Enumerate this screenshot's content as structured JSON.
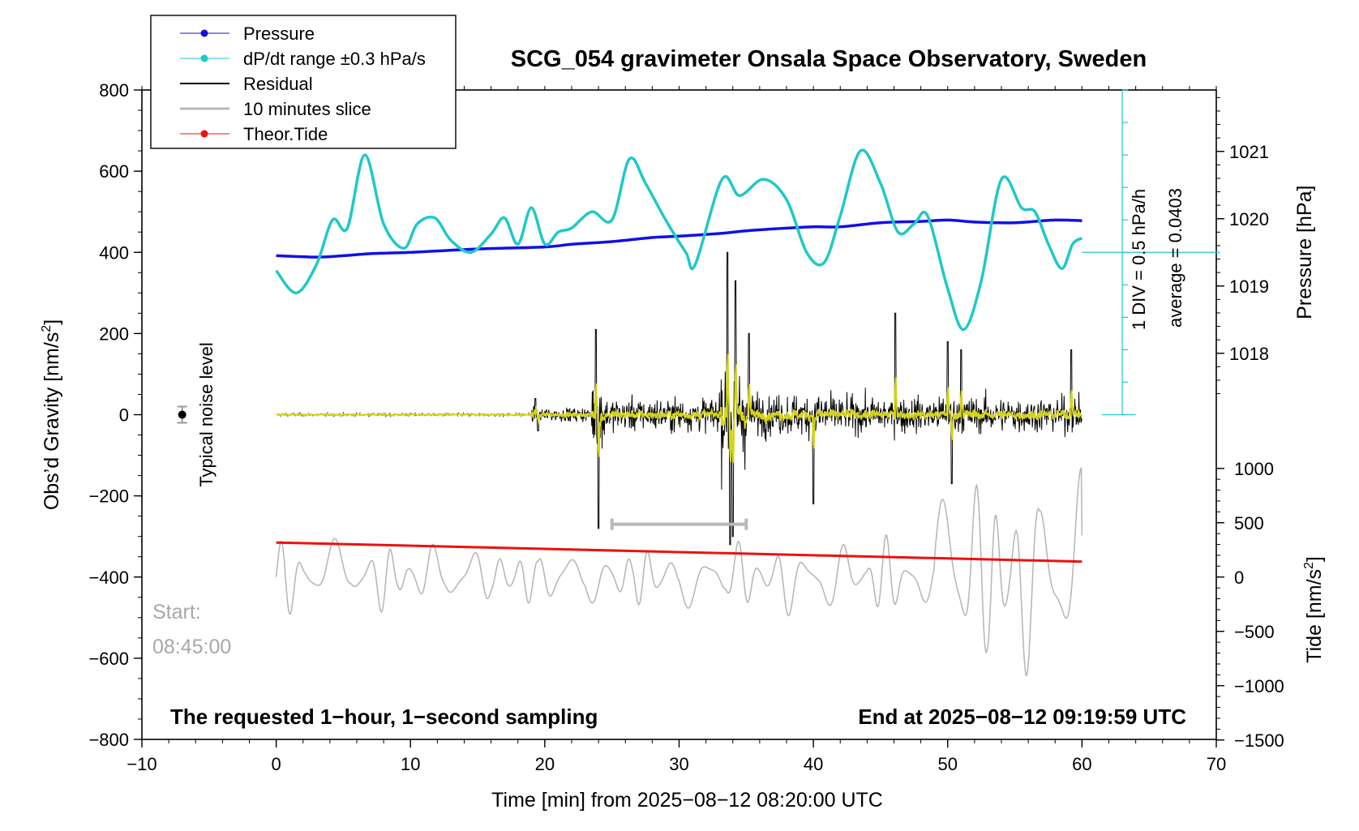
{
  "chart_data": {
    "type": "line",
    "title": "SCG_054 gravimeter Onsala Space Observatory, Sweden",
    "xlabel": "Time [min] from 2025−08−12 08:20:00 UTC",
    "ylabel_left_main": "Obs’d Gravity [nm/s",
    "ylabel_left_sup": "2",
    "ylabel_left_end": "]",
    "ylabel_right_pressure": "Pressure [hPa]",
    "ylabel_right_tide_main": "Tide [nm/s",
    "ylabel_right_tide_sup": "2",
    "ylabel_right_tide_end": "]",
    "xlim": [
      -10,
      70
    ],
    "ylim": [
      -800,
      800
    ],
    "pressure_ylim": [
      1017.0,
      1021.94
    ],
    "tide_ylim": [
      -1500,
      1500
    ],
    "x_ticks": [
      -10,
      0,
      10,
      20,
      30,
      40,
      50,
      60,
      70
    ],
    "x_tick_labels": [
      "−10",
      "0",
      "10",
      "20",
      "30",
      "40",
      "50",
      "60",
      "70"
    ],
    "y_ticks": [
      800,
      600,
      400,
      200,
      0,
      -200,
      -400,
      -600,
      -800
    ],
    "y_tick_labels": [
      "800",
      "600",
      "400",
      "200",
      "0",
      "−200",
      "−400",
      "−600",
      "−800"
    ],
    "pressure_ticks": [
      1021,
      1020,
      1019,
      1018
    ],
    "pressure_tick_labels": [
      "1021",
      "1020",
      "1019",
      "1018"
    ],
    "tide_ticks": [
      1000,
      500,
      0,
      -500,
      -1000,
      -1500
    ],
    "tide_tick_labels": [
      "1000",
      "500",
      "0",
      "−500",
      "−1000",
      "−1500"
    ],
    "legend": {
      "placement": "top-left",
      "entries": [
        {
          "label": "Pressure",
          "color": "#1010e8",
          "marker": true
        },
        {
          "label": "dP/dt range ±0.3 hPa/s",
          "color": "#20c8c8",
          "marker": true
        },
        {
          "label": "Residual",
          "color": "#000000",
          "marker": false
        },
        {
          "label": "10 minutes slice",
          "color": "#b8b8b8",
          "marker": false
        },
        {
          "label": "Theor.Tide",
          "color": "#ee1010",
          "marker": true
        }
      ]
    },
    "annotations": {
      "noise_label": "Typical noise level",
      "noise_level": 0,
      "noise_error": 20,
      "dpdt_div": "1 DIV = 0.5 hPa/h",
      "dpdt_average": "average = 0.0403",
      "start_label": "Start:",
      "start_time": "08:45:00",
      "footer_left": "The requested 1−hour, 1−second sampling",
      "footer_right": "End at 2025−08−12 09:19:59 UTC",
      "slice_bracket_x": [
        25,
        35
      ],
      "slice_bracket_y": -270,
      "dpdt_axis_x": 63,
      "dpdt_axis_y_range": [
        0,
        800
      ],
      "dpdt_axis_ref_y": 400,
      "dpdt_axis_right_x": 64
    },
    "series": [
      {
        "name": "Pressure",
        "color": "#1010e8",
        "axis": "pressure",
        "x": [
          0,
          3,
          5,
          7,
          10,
          15,
          20,
          22,
          25,
          28,
          30,
          33,
          35,
          38,
          40,
          42,
          45,
          48,
          50,
          52,
          55,
          58,
          60
        ],
        "y": [
          1019.45,
          1019.43,
          1019.45,
          1019.48,
          1019.5,
          1019.55,
          1019.58,
          1019.62,
          1019.66,
          1019.72,
          1019.74,
          1019.78,
          1019.82,
          1019.86,
          1019.88,
          1019.88,
          1019.94,
          1019.96,
          1019.98,
          1019.95,
          1019.94,
          1019.98,
          1019.97
        ]
      },
      {
        "name": "dP/dt range ±0.3 hPa/s",
        "color": "#20c8c8",
        "axis": "gravity",
        "x": [
          0,
          1.5,
          3,
          4.2,
          5.3,
          6.6,
          8,
          9.5,
          10.5,
          11.8,
          13,
          14.5,
          16,
          17,
          18,
          19,
          20,
          21,
          22,
          23.5,
          25,
          26.3,
          27.5,
          29,
          30.5,
          31.2,
          33.2,
          34.5,
          36.3,
          38,
          39.5,
          40.8,
          42,
          43.5,
          45,
          46.3,
          47.5,
          48.5,
          50,
          51.2,
          52.5,
          54,
          55.5,
          56.5,
          57.5,
          58.5,
          59.3,
          60
        ],
        "y": [
          355,
          300,
          370,
          480,
          460,
          640,
          470,
          410,
          470,
          485,
          430,
          400,
          445,
          485,
          420,
          510,
          420,
          450,
          460,
          500,
          480,
          630,
          570,
          480,
          400,
          370,
          580,
          540,
          580,
          530,
          400,
          375,
          490,
          650,
          570,
          450,
          470,
          490,
          310,
          210,
          330,
          580,
          510,
          500,
          420,
          360,
          420,
          435
        ]
      },
      {
        "name": "Theor.Tide",
        "color": "#ee1010",
        "axis": "gravity",
        "x": [
          0,
          60
        ],
        "y": [
          -315,
          -362
        ]
      }
    ]
  }
}
